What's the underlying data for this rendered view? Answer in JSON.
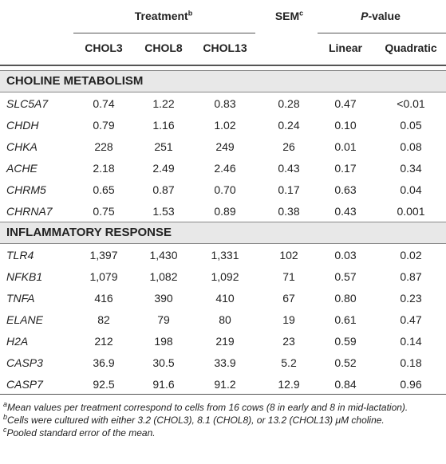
{
  "header": {
    "treatment": {
      "label": "Treatment",
      "note": "b"
    },
    "sem": {
      "label": "SEM",
      "note": "c"
    },
    "pvalue": {
      "italic": "P",
      "text": "-value"
    },
    "columns": [
      "CHOL3",
      "CHOL8",
      "CHOL13",
      "Linear",
      "Quadratic"
    ]
  },
  "sections": [
    {
      "title": "CHOLINE METABOLISM",
      "rows": [
        [
          "SLC5A7",
          "0.74",
          "1.22",
          "0.83",
          "0.28",
          "0.47",
          "<0.01"
        ],
        [
          "CHDH",
          "0.79",
          "1.16",
          "1.02",
          "0.24",
          "0.10",
          "0.05"
        ],
        [
          "CHKA",
          "228",
          "251",
          "249",
          "26",
          "0.01",
          "0.08"
        ],
        [
          "ACHE",
          "2.18",
          "2.49",
          "2.46",
          "0.43",
          "0.17",
          "0.34"
        ],
        [
          "CHRM5",
          "0.65",
          "0.87",
          "0.70",
          "0.17",
          "0.63",
          "0.04"
        ],
        [
          "CHRNA7",
          "0.75",
          "1.53",
          "0.89",
          "0.38",
          "0.43",
          "0.001"
        ]
      ]
    },
    {
      "title": "INFLAMMATORY RESPONSE",
      "rows": [
        [
          "TLR4",
          "1,397",
          "1,430",
          "1,331",
          "102",
          "0.03",
          "0.02"
        ],
        [
          "NFKB1",
          "1,079",
          "1,082",
          "1,092",
          "71",
          "0.57",
          "0.87"
        ],
        [
          "TNFA",
          "416",
          "390",
          "410",
          "67",
          "0.80",
          "0.23"
        ],
        [
          "ELANE",
          "82",
          "79",
          "80",
          "19",
          "0.61",
          "0.47"
        ],
        [
          "H2A",
          "212",
          "198",
          "219",
          "23",
          "0.59",
          "0.14"
        ],
        [
          "CASP3",
          "36.9",
          "30.5",
          "33.9",
          "5.2",
          "0.52",
          "0.18"
        ],
        [
          "CASP7",
          "92.5",
          "91.6",
          "91.2",
          "12.9",
          "0.84",
          "0.96"
        ]
      ]
    }
  ],
  "footnotes": [
    {
      "mark": "a",
      "text": "Mean values per treatment correspond to cells from 16 cows (8 in early and 8 in mid-lactation)."
    },
    {
      "mark": "b",
      "text": "Cells were cultured with either 3.2 (CHOL3), 8.1 (CHOL8), or 13.2 (CHOL13) μM choline."
    },
    {
      "mark": "c",
      "text": "Pooled standard error of the mean."
    }
  ]
}
